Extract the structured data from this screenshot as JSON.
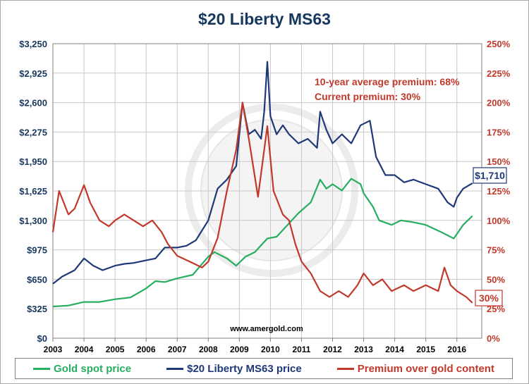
{
  "chart_data": {
    "type": "line",
    "title": "$20 Liberty MS63",
    "x_ticks": [
      "2003",
      "2004",
      "2005",
      "2006",
      "2007",
      "2008",
      "2009",
      "2010",
      "2011",
      "2012",
      "2013",
      "2014",
      "2015",
      "2016"
    ],
    "xlim": [
      2003,
      2016.8
    ],
    "ylim_left": [
      0,
      3250
    ],
    "ylim_right": [
      0,
      250
    ],
    "y_ticks_left": [
      "$0",
      "$325",
      "$650",
      "$975",
      "$1,300",
      "$1,625",
      "$1,950",
      "$2,275",
      "$2,600",
      "$2,925",
      "$3,250"
    ],
    "y_ticks_right": [
      "0%",
      "25%",
      "50%",
      "75%",
      "100%",
      "125%",
      "150%",
      "175%",
      "200%",
      "225%",
      "250%"
    ],
    "grid": true,
    "legend_position": "bottom",
    "series": [
      {
        "name": "Gold spot price",
        "axis": "left",
        "color": "#27ae60",
        "x": [
          2003,
          2003.5,
          2004,
          2004.5,
          2005,
          2005.5,
          2006,
          2006.3,
          2006.6,
          2007,
          2007.5,
          2008,
          2008.2,
          2008.6,
          2008.9,
          2009.2,
          2009.5,
          2009.9,
          2010.2,
          2010.5,
          2010.9,
          2011.3,
          2011.6,
          2011.8,
          2012,
          2012.3,
          2012.6,
          2012.9,
          2013,
          2013.3,
          2013.5,
          2013.9,
          2014.2,
          2014.6,
          2015,
          2015.5,
          2015.9,
          2016.2,
          2016.5
        ],
        "values": [
          350,
          360,
          400,
          400,
          430,
          450,
          550,
          630,
          620,
          660,
          700,
          900,
          950,
          880,
          800,
          900,
          950,
          1100,
          1120,
          1230,
          1380,
          1500,
          1750,
          1650,
          1700,
          1630,
          1760,
          1700,
          1600,
          1450,
          1300,
          1250,
          1300,
          1280,
          1250,
          1170,
          1100,
          1250,
          1350
        ]
      },
      {
        "name": "$20 Liberty MS63 price",
        "axis": "left",
        "color": "#1f3877",
        "x": [
          2003,
          2003.3,
          2003.7,
          2004,
          2004.3,
          2004.6,
          2005,
          2005.3,
          2005.6,
          2006,
          2006.3,
          2006.6,
          2007,
          2007.3,
          2007.6,
          2008,
          2008.3,
          2008.6,
          2008.9,
          2009.1,
          2009.3,
          2009.5,
          2009.7,
          2009.8,
          2009.9,
          2010,
          2010.2,
          2010.4,
          2010.6,
          2010.9,
          2011.2,
          2011.5,
          2011.6,
          2011.8,
          2012,
          2012.3,
          2012.6,
          2012.9,
          2013.2,
          2013.4,
          2013.7,
          2014,
          2014.3,
          2014.6,
          2015,
          2015.4,
          2015.7,
          2015.9,
          2016,
          2016.2,
          2016.5
        ],
        "values": [
          600,
          680,
          750,
          880,
          800,
          750,
          800,
          820,
          830,
          860,
          880,
          1000,
          1000,
          1020,
          1080,
          1300,
          1650,
          1750,
          1900,
          2600,
          2250,
          2300,
          2200,
          2500,
          3050,
          2450,
          2250,
          2350,
          2250,
          2150,
          2200,
          2100,
          2500,
          2300,
          2150,
          2250,
          2150,
          2350,
          2400,
          2000,
          1800,
          1800,
          1720,
          1750,
          1700,
          1650,
          1500,
          1450,
          1550,
          1650,
          1710
        ]
      },
      {
        "name": "Premium over gold content",
        "axis": "right",
        "color": "#c0392b",
        "x": [
          2003,
          2003.2,
          2003.5,
          2003.7,
          2004,
          2004.2,
          2004.5,
          2004.8,
          2005,
          2005.3,
          2005.6,
          2005.9,
          2006.2,
          2006.5,
          2006.7,
          2007,
          2007.4,
          2007.8,
          2008,
          2008.3,
          2008.6,
          2008.9,
          2009.1,
          2009.3,
          2009.6,
          2009.9,
          2010.1,
          2010.4,
          2010.6,
          2010.8,
          2011,
          2011.3,
          2011.6,
          2011.9,
          2012.2,
          2012.5,
          2012.8,
          2013,
          2013.3,
          2013.6,
          2013.9,
          2014.3,
          2014.6,
          2015,
          2015.4,
          2015.6,
          2015.8,
          2016,
          2016.3,
          2016.5
        ],
        "values": [
          90,
          125,
          105,
          110,
          130,
          115,
          100,
          95,
          100,
          105,
          100,
          95,
          100,
          90,
          80,
          70,
          65,
          60,
          65,
          85,
          125,
          160,
          200,
          170,
          120,
          180,
          125,
          105,
          100,
          80,
          65,
          55,
          40,
          35,
          40,
          35,
          45,
          55,
          45,
          50,
          40,
          45,
          40,
          45,
          40,
          60,
          45,
          40,
          35,
          30
        ]
      }
    ],
    "annotations": [
      "10-year average premium: 68%",
      "Current premium: 30%",
      "$1,710",
      "30%",
      "www.amergold.com"
    ]
  },
  "colors": {
    "gold": "#27ae60",
    "liberty": "#1f3877",
    "premium": "#c0392b",
    "grid": "#c8c8c8",
    "title": "#17375e"
  }
}
